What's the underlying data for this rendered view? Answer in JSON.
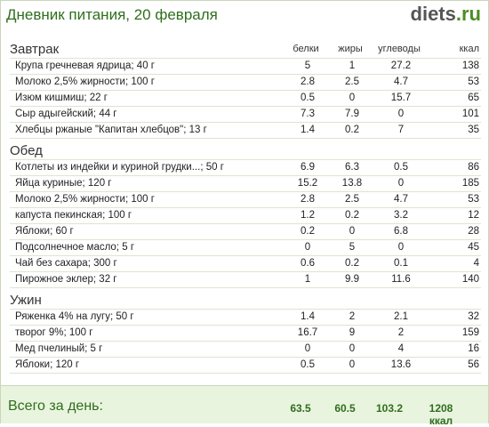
{
  "title": "Дневник питания, 20 февраля",
  "logo": {
    "part1": "diets",
    "part2": ".ru"
  },
  "columns": {
    "protein": "белки",
    "fat": "жиры",
    "carbs": "углеводы",
    "kcal": "ккал"
  },
  "sections": [
    {
      "name": "Завтрак",
      "items": [
        {
          "name": "Крупа гречневая ядрица; 40 г",
          "p": "5",
          "f": "1",
          "c": "27.2",
          "k": "138"
        },
        {
          "name": "Молоко 2,5% жирности; 100 г",
          "p": "2.8",
          "f": "2.5",
          "c": "4.7",
          "k": "53"
        },
        {
          "name": "Изюм кишмиш; 22 г",
          "p": "0.5",
          "f": "0",
          "c": "15.7",
          "k": "65"
        },
        {
          "name": "Сыр адыгейский; 44 г",
          "p": "7.3",
          "f": "7.9",
          "c": "0",
          "k": "101"
        },
        {
          "name": "Хлебцы ржаные \"Капитан хлебцов\"; 13 г",
          "p": "1.4",
          "f": "0.2",
          "c": "7",
          "k": "35"
        }
      ]
    },
    {
      "name": "Обед",
      "items": [
        {
          "name": "Котлеты из индейки и куриной грудки...; 50 г",
          "p": "6.9",
          "f": "6.3",
          "c": "0.5",
          "k": "86"
        },
        {
          "name": "Яйца куриные; 120 г",
          "p": "15.2",
          "f": "13.8",
          "c": "0",
          "k": "185"
        },
        {
          "name": "Молоко 2,5% жирности; 100 г",
          "p": "2.8",
          "f": "2.5",
          "c": "4.7",
          "k": "53"
        },
        {
          "name": "капуста пекинская; 100 г",
          "p": "1.2",
          "f": "0.2",
          "c": "3.2",
          "k": "12"
        },
        {
          "name": "Яблоки; 60 г",
          "p": "0.2",
          "f": "0",
          "c": "6.8",
          "k": "28"
        },
        {
          "name": "Подсолнечное масло; 5 г",
          "p": "0",
          "f": "5",
          "c": "0",
          "k": "45"
        },
        {
          "name": "Чай без сахара; 300 г",
          "p": "0.6",
          "f": "0.2",
          "c": "0.1",
          "k": "4"
        },
        {
          "name": "Пирожное эклер; 32 г",
          "p": "1",
          "f": "9.9",
          "c": "11.6",
          "k": "140"
        }
      ]
    },
    {
      "name": "Ужин",
      "items": [
        {
          "name": "Ряженка 4% на лугу; 50 г",
          "p": "1.4",
          "f": "2",
          "c": "2.1",
          "k": "32"
        },
        {
          "name": "творог 9%; 100 г",
          "p": "16.7",
          "f": "9",
          "c": "2",
          "k": "159"
        },
        {
          "name": "Мед пчелиный; 5 г",
          "p": "0",
          "f": "0",
          "c": "4",
          "k": "16"
        },
        {
          "name": "Яблоки; 120 г",
          "p": "0.5",
          "f": "0",
          "c": "13.6",
          "k": "56"
        }
      ]
    }
  ],
  "footer": {
    "label": "Всего за день:",
    "p": "63.5",
    "f": "60.5",
    "c": "103.2",
    "k": "1208 ккал"
  }
}
